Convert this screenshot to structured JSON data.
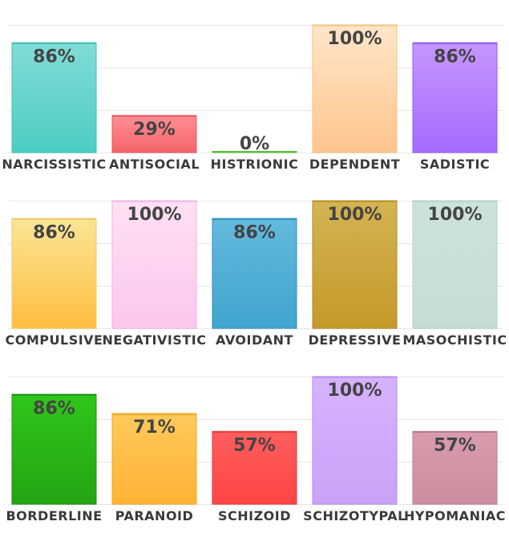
{
  "chart_data": [
    {
      "type": "bar",
      "categories": [
        "NARCISSISTIC",
        "ANTISOCIAL",
        "HISTRIONIC",
        "DEPENDENT",
        "SADISTIC"
      ],
      "values": [
        86,
        29,
        0,
        100,
        86
      ],
      "value_labels": [
        "86%",
        "29%",
        "0%",
        "100%",
        "86%"
      ],
      "colors": [
        [
          "#82dcd6",
          "#4dcdc2"
        ],
        [
          "#ff8f93",
          "#f5636a"
        ],
        [
          "#9ee08a",
          "#6fcf4f"
        ],
        [
          "#ffe6c8",
          "#ffc58e"
        ],
        [
          "#c596ff",
          "#a56bff"
        ]
      ],
      "edge_colors": [
        "#3fbfb4",
        "#e85560",
        "#5cc13a",
        "#f7c07c",
        "#9358f5"
      ],
      "ylim": [
        0,
        100
      ],
      "grid": true,
      "legend": "none"
    },
    {
      "type": "bar",
      "categories": [
        "COMPULSIVE",
        "NEGATIVISTIC",
        "AVOIDANT",
        "DEPRESSIVE",
        "MASOCHISTIC"
      ],
      "values": [
        86,
        100,
        86,
        100,
        100
      ],
      "value_labels": [
        "86%",
        "100%",
        "86%",
        "100%",
        "100%"
      ],
      "colors": [
        [
          "#fae597",
          "#ffbe3f"
        ],
        [
          "#ffe0f4",
          "#fcc7ec"
        ],
        [
          "#64b9de",
          "#3fa5cf"
        ],
        [
          "#d4b352",
          "#c49a2a"
        ],
        [
          "#cde3da",
          "#c5ddd3"
        ]
      ],
      "edge_colors": [
        "#f1c867",
        "#f0b2df",
        "#2e8fb9",
        "#b48b22",
        "#b6d0c4"
      ],
      "ylim": [
        0,
        100
      ],
      "grid": true,
      "legend": "none"
    },
    {
      "type": "bar",
      "categories": [
        "BORDERLINE",
        "PARANOID",
        "SCHIZOID",
        "SCHIZOTYPAL",
        "HYPOMANIAC"
      ],
      "values": [
        86,
        71,
        57,
        100,
        57
      ],
      "value_labels": [
        "86%",
        "71%",
        "57%",
        "100%",
        "57%"
      ],
      "colors": [
        [
          "#2fc61a",
          "#24a512"
        ],
        [
          "#ffc95a",
          "#ffb335"
        ],
        [
          "#ff5e5e",
          "#ff4444"
        ],
        [
          "#d6b3ff",
          "#c9a2f7"
        ],
        [
          "#d89cac",
          "#cc8e9f"
        ]
      ],
      "edge_colors": [
        "#1e8e0e",
        "#f2a425",
        "#e83a3a",
        "#b48ce8",
        "#b97d8e"
      ],
      "ylim": [
        0,
        100
      ],
      "grid": true,
      "legend": "none"
    }
  ]
}
